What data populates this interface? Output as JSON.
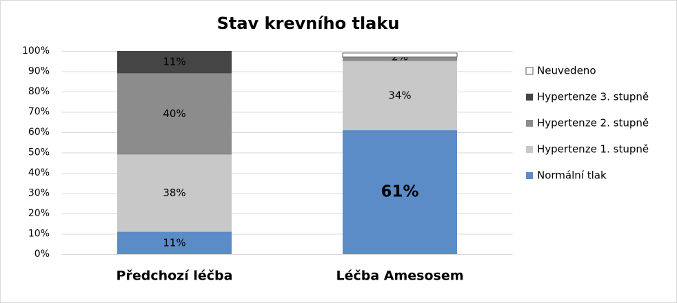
{
  "chart_data": {
    "type": "stacked_bar",
    "title": "Stav krevního tlaku",
    "categories": [
      "Předchozí léčba",
      "Léčba Amesosem"
    ],
    "series": [
      {
        "name": "Normální  tlak",
        "color": "#5b8cc8",
        "values": [
          11,
          61
        ],
        "value_labels": [
          "11%",
          "61%"
        ]
      },
      {
        "name": "Hypertenze 1. stupně",
        "color": "#c8c8c8",
        "values": [
          38,
          34
        ],
        "value_labels": [
          "38%",
          "34%"
        ]
      },
      {
        "name": "Hypertenze 2. stupně",
        "color": "#8c8c8c",
        "values": [
          40,
          2
        ],
        "value_labels": [
          "40%",
          "2%"
        ]
      },
      {
        "name": "Hypertenze 3. stupně",
        "color": "#454545",
        "values": [
          11,
          0
        ],
        "value_labels": [
          "11%",
          null
        ]
      },
      {
        "name": "Neuvedeno",
        "color": "#ffffff",
        "values": [
          0,
          2
        ],
        "value_labels": [
          null,
          null
        ]
      }
    ],
    "ylim": [
      0,
      100
    ],
    "yticks": [
      {
        "value": 0,
        "label": "0%"
      },
      {
        "value": 10,
        "label": "10%"
      },
      {
        "value": 20,
        "label": "20%"
      },
      {
        "value": 30,
        "label": "30%"
      },
      {
        "value": 40,
        "label": "40%"
      },
      {
        "value": 50,
        "label": "50%"
      },
      {
        "value": 60,
        "label": "60%"
      },
      {
        "value": 70,
        "label": "70%"
      },
      {
        "value": 80,
        "label": "80%"
      },
      {
        "value": 90,
        "label": "90%"
      },
      {
        "value": 100,
        "label": "100%"
      }
    ],
    "grid": true,
    "legend": "right"
  }
}
